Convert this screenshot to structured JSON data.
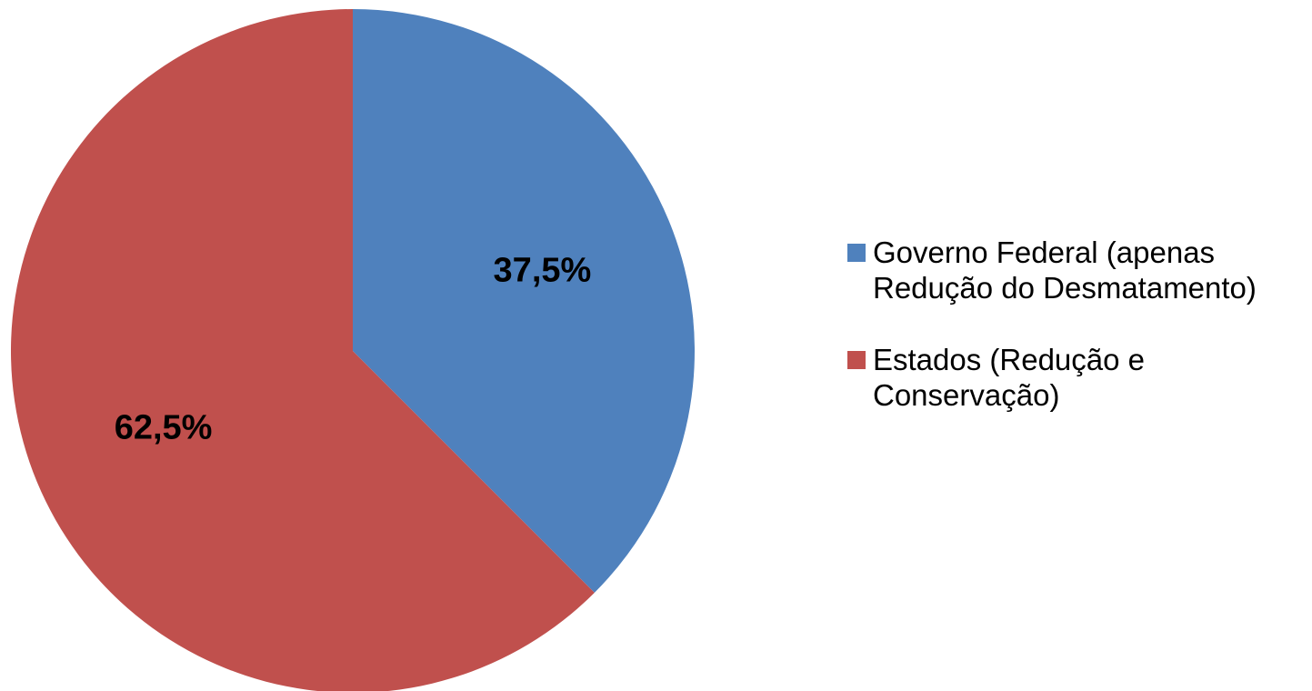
{
  "chart_data": {
    "type": "pie",
    "title": "",
    "legend_position": "right",
    "slices": [
      {
        "name": "Governo Federal (apenas\nRedução do Desmatamento)",
        "value": 37.5,
        "label": "37,5%",
        "color": "#4f81bd"
      },
      {
        "name": "Estados (Redução e\nConservação)",
        "value": 62.5,
        "label": "62,5%",
        "color": "#c0504d"
      }
    ]
  }
}
